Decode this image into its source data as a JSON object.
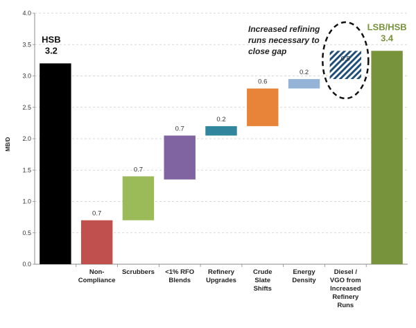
{
  "chart_data": {
    "type": "bar",
    "ylabel": "MB/D",
    "ylim": [
      0,
      4.0
    ],
    "yticks": [
      "0.0",
      "0.5",
      "1.0",
      "1.5",
      "2.0",
      "2.5",
      "3.0",
      "3.5",
      "4.0"
    ],
    "grid": true,
    "bars": [
      {
        "category": [
          "",
          ""
        ],
        "base": 0,
        "value": 3.2,
        "color": "#000000",
        "big_label": [
          "HSB",
          "3.2"
        ],
        "label": ""
      },
      {
        "category": [
          "Non-",
          "Compliance"
        ],
        "base": 0,
        "value": 0.7,
        "color": "#c0504d",
        "label": "0.7"
      },
      {
        "category": [
          "Scrubbers"
        ],
        "base": 0.7,
        "value": 0.7,
        "color": "#9bbb59",
        "label": "0.7"
      },
      {
        "category": [
          "<1% RFO",
          "Blends"
        ],
        "base": 1.35,
        "value": 0.7,
        "color": "#8064a2",
        "label": "0.7"
      },
      {
        "category": [
          "Refinery",
          "Upgrades"
        ],
        "base": 2.05,
        "value": 0.15,
        "color": "#31859c",
        "label": "0.2"
      },
      {
        "category": [
          "Crude",
          "Slate",
          "Shifts"
        ],
        "base": 2.2,
        "value": 0.6,
        "color": "#e8843a",
        "label": "0.6"
      },
      {
        "category": [
          "Energy",
          "Density"
        ],
        "base": 2.8,
        "value": 0.15,
        "color": "#95b3d7",
        "label": "0.2"
      },
      {
        "category": [
          "Diesel /",
          "VGO from",
          "Increased",
          "Refinery",
          "Runs"
        ],
        "base": 2.95,
        "value": 0.45,
        "color": "#1f4e79",
        "hatched": true,
        "label": "0.5"
      },
      {
        "category": [
          "",
          ""
        ],
        "base": 0,
        "value": 3.4,
        "color": "#77933c",
        "big_label": [
          "LSB/HSB",
          "3.4"
        ],
        "label": ""
      }
    ],
    "annotation": [
      "Increased refining",
      "runs necessary to",
      "close gap"
    ]
  }
}
